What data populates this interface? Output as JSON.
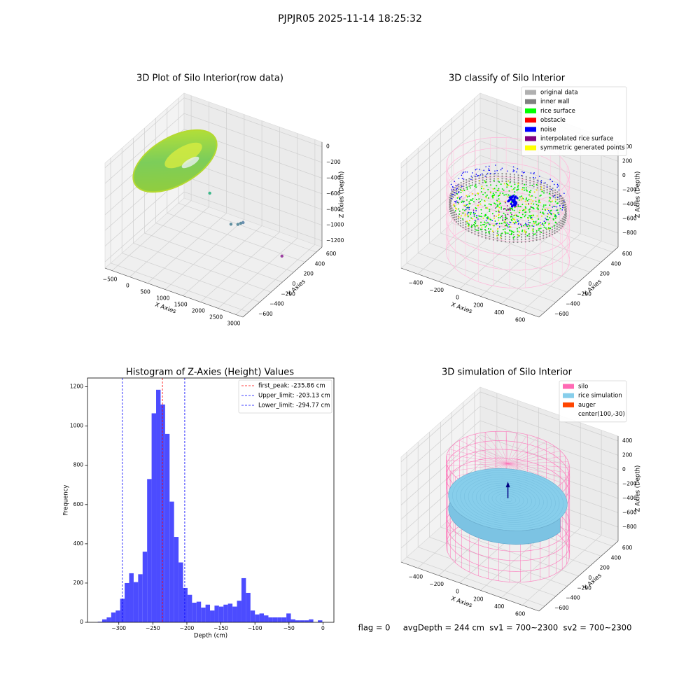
{
  "title": "PJPJR05 2025-11-14 18:25:32",
  "chart_data": [
    {
      "type": "scatter3d",
      "title": "3D Plot of Silo Interior(row data)",
      "xlabel": "X Axies",
      "ylabel": "Y Axies",
      "zlabel": "Z Axies (Depth)",
      "xlim": [
        -700,
        3200
      ],
      "ylim": [
        -700,
        700
      ],
      "zlim": [
        -1280,
        60
      ],
      "xticks": [
        {
          "value": -500,
          "label": "−500"
        },
        0,
        500,
        1000,
        1500,
        2000,
        2500,
        3000
      ],
      "yticks": [
        {
          "value": -600,
          "label": "−600"
        },
        {
          "value": -400,
          "label": "−400"
        },
        {
          "value": -200,
          "label": "−200"
        },
        0,
        200,
        400,
        600
      ],
      "zticks": [
        {
          "value": -1200,
          "label": "−1200"
        },
        {
          "value": -1000,
          "label": "−1000"
        },
        {
          "value": -800,
          "label": "−800"
        },
        {
          "value": -600,
          "label": "−600"
        },
        {
          "value": -400,
          "label": "−400"
        },
        {
          "value": -200,
          "label": "−200"
        },
        0
      ],
      "points": {
        "x": [
          920,
          1520,
          1700,
          1750,
          1800,
          2650
        ],
        "y": [
          140,
          140,
          150,
          170,
          180,
          335
        ],
        "z": [
          -600,
          -900,
          -880,
          -870,
          -860,
          -1250
        ],
        "colors": [
          "#3cb88a",
          "#5f8fa0",
          "#5f8fa0",
          "#5f8fa0",
          "#6a8fb0",
          "#9b3fa0"
        ]
      }
    },
    {
      "type": "scatter3d",
      "title": "3D classify of Silo Interior",
      "xlabel": "X Axies",
      "ylabel": "Y Axies",
      "zlabel": "Z Axies (Depth)",
      "xlim": [
        -560,
        760
      ],
      "ylim": [
        -700,
        700
      ],
      "zlim": [
        -995,
        467
      ],
      "xticks": [
        {
          "value": -400,
          "label": "−400"
        },
        {
          "value": -200,
          "label": "−200"
        },
        0,
        200,
        400,
        600
      ],
      "yticks": [
        {
          "value": -600,
          "label": "−600"
        },
        {
          "value": -400,
          "label": "−400"
        },
        {
          "value": -200,
          "label": "−200"
        },
        0,
        200,
        400,
        600
      ],
      "zticks": [
        {
          "value": -800,
          "label": "−800"
        },
        {
          "value": -600,
          "label": "−600"
        },
        {
          "value": -400,
          "label": "−400"
        },
        {
          "value": -200,
          "label": "−200"
        },
        0,
        200,
        400
      ],
      "legend": [
        {
          "name": "original data",
          "color": "#b0b0b0"
        },
        {
          "name": "inner wall",
          "color": "#808080"
        },
        {
          "name": "rice surface",
          "color": "#00ff00"
        },
        {
          "name": "obstacle",
          "color": "#ff0000"
        },
        {
          "name": "noise",
          "color": "#0000ff"
        },
        {
          "name": "interpolated rice surface",
          "color": "#800080"
        },
        {
          "name": "symmetric generated points",
          "color": "#ffff00"
        }
      ]
    },
    {
      "type": "histogram",
      "title": "Histogram of Z-Axies (Height) Values",
      "xlabel": "Depth (cm)",
      "ylabel": "Frequency",
      "bins": [
        -331,
        -324.4,
        -317.8,
        -311.2,
        -304.6,
        -298,
        -291.4,
        -284.8,
        -278.2,
        -271.6,
        -265,
        -258.4,
        -251.8,
        -245.2,
        -238.6,
        -232,
        -225.4,
        -218.8,
        -212.2,
        -205.6,
        -199,
        -192.4,
        -185.8,
        -179.2,
        -172.6,
        -166,
        -159.4,
        -152.8,
        -146.2,
        -139.6,
        -133,
        -126.4,
        -119.8,
        -113.2,
        -106.6,
        -100,
        -93.4,
        -86.8,
        -80.2,
        -73.6,
        -67,
        -60.4,
        -53.8,
        -47.2,
        -40.6,
        -34,
        -27.4,
        -20.8,
        -14.2,
        -7.6,
        -1
      ],
      "counts": [
        3,
        15,
        25,
        50,
        60,
        120,
        200,
        250,
        205,
        245,
        360,
        730,
        1065,
        1185,
        1110,
        960,
        615,
        435,
        305,
        175,
        140,
        100,
        105,
        75,
        90,
        60,
        85,
        80,
        90,
        95,
        80,
        110,
        225,
        150,
        60,
        40,
        45,
        35,
        25,
        25,
        25,
        25,
        45,
        15,
        10,
        10,
        10,
        15,
        0,
        10
      ],
      "color": "#4c4cff",
      "xlim": [
        -346,
        16
      ],
      "ylim": [
        0,
        1245
      ],
      "xticks": [
        {
          "value": -300,
          "label": "−300"
        },
        {
          "value": -250,
          "label": "−250"
        },
        {
          "value": -200,
          "label": "−200"
        },
        {
          "value": -150,
          "label": "−150"
        },
        {
          "value": -100,
          "label": "−100"
        },
        {
          "value": -50,
          "label": "−50"
        },
        0
      ],
      "yticks": [
        0,
        200,
        400,
        600,
        800,
        1000,
        1200
      ],
      "vlines": [
        {
          "name": "first_peak: -235.86 cm",
          "value": -235.86,
          "color": "#ff0000"
        },
        {
          "name": "Upper_limit: -203.13 cm",
          "value": -203.13,
          "color": "#0000ff"
        },
        {
          "name": "Lower_limit: -294.77 cm",
          "value": -294.77,
          "color": "#0000ff"
        }
      ]
    },
    {
      "type": "scatter3d",
      "title": "3D simulation of Silo Interior",
      "xlabel": "X Axies",
      "ylabel": "Y Axies",
      "zlabel": "Z Axies (Depth)",
      "xlim": [
        -560,
        760
      ],
      "ylim": [
        -700,
        700
      ],
      "zlim": [
        -995,
        467
      ],
      "xticks": [
        {
          "value": -400,
          "label": "−400"
        },
        {
          "value": -200,
          "label": "−200"
        },
        0,
        200,
        400,
        600
      ],
      "yticks": [
        {
          "value": -600,
          "label": "−600"
        },
        {
          "value": -400,
          "label": "−400"
        },
        {
          "value": -200,
          "label": "−200"
        },
        0,
        200,
        400,
        600
      ],
      "zticks": [
        {
          "value": -800,
          "label": "−800"
        },
        {
          "value": -600,
          "label": "−600"
        },
        {
          "value": -400,
          "label": "−400"
        },
        {
          "value": -200,
          "label": "−200"
        },
        0,
        200,
        400
      ],
      "legend": [
        {
          "name": "silo",
          "color": "#ff69b4"
        },
        {
          "name": "rice simulation",
          "color": "#87ceeb"
        },
        {
          "name": "auger",
          "color": "#ff4500"
        },
        {
          "name": "center(100,-30)"
        }
      ]
    }
  ],
  "footer": "flag = 0     avgDepth = 244 cm  sv1 = 700~2300  sv2 = 700~2300"
}
